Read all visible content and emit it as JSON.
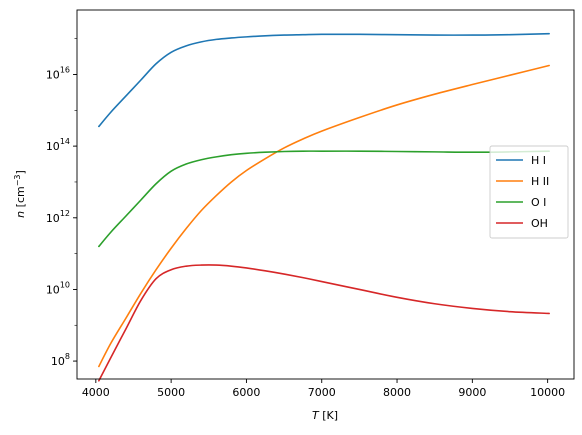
{
  "chart_data": {
    "type": "line",
    "title": "",
    "xlabel": {
      "italic": "T",
      "unit": " [K]"
    },
    "ylabel": {
      "italic": "n",
      "unit": " [cm",
      "unit_sup": "−3",
      "unit_end": "]"
    },
    "yscale": "log",
    "xlim": [
      3750,
      10350
    ],
    "ylim_log10": [
      7.5,
      17.8
    ],
    "xticks": [
      4000,
      5000,
      6000,
      7000,
      8000,
      9000,
      10000
    ],
    "xtick_labels": [
      "4000",
      "5000",
      "6000",
      "7000",
      "8000",
      "9000",
      "10000"
    ],
    "yticks_log10": [
      8,
      10,
      12,
      14,
      16
    ],
    "ytick_labels": [
      {
        "base": "10",
        "exp": "8"
      },
      {
        "base": "10",
        "exp": "10"
      },
      {
        "base": "10",
        "exp": "12"
      },
      {
        "base": "10",
        "exp": "14"
      },
      {
        "base": "10",
        "exp": "16"
      }
    ],
    "grid": false,
    "legend_position": "center-right",
    "x": [
      4040,
      4200,
      4400,
      4600,
      4800,
      5000,
      5200,
      5400,
      5600,
      5800,
      6000,
      6250,
      6500,
      6750,
      7000,
      7500,
      8000,
      8500,
      9000,
      9500,
      10020
    ],
    "series": [
      {
        "name": "H I",
        "color": "#1f77b4",
        "log10_values": [
          14.55,
          14.95,
          15.4,
          15.85,
          16.3,
          16.62,
          16.8,
          16.91,
          16.98,
          17.02,
          17.05,
          17.08,
          17.1,
          17.11,
          17.12,
          17.12,
          17.11,
          17.1,
          17.1,
          17.11,
          17.14
        ]
      },
      {
        "name": "H II",
        "color": "#ff7f0e",
        "log10_values": [
          7.85,
          8.5,
          9.2,
          9.9,
          10.55,
          11.15,
          11.7,
          12.2,
          12.62,
          13.0,
          13.32,
          13.65,
          13.95,
          14.2,
          14.42,
          14.8,
          15.15,
          15.45,
          15.72,
          15.98,
          16.25
        ]
      },
      {
        "name": "O I",
        "color": "#2ca02c",
        "log10_values": [
          11.2,
          11.6,
          12.05,
          12.5,
          12.95,
          13.3,
          13.5,
          13.62,
          13.7,
          13.76,
          13.8,
          13.83,
          13.85,
          13.86,
          13.86,
          13.86,
          13.85,
          13.84,
          13.83,
          13.84,
          13.86
        ]
      },
      {
        "name": "OH",
        "color": "#d62728",
        "log10_values": [
          7.45,
          8.1,
          8.9,
          9.7,
          10.3,
          10.55,
          10.65,
          10.68,
          10.68,
          10.65,
          10.6,
          10.52,
          10.43,
          10.33,
          10.22,
          10.0,
          9.78,
          9.6,
          9.47,
          9.38,
          9.33
        ]
      }
    ]
  }
}
